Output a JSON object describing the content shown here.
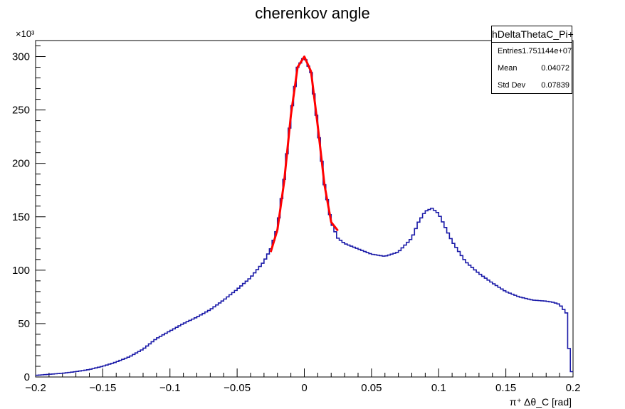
{
  "chart_data": {
    "type": "line",
    "title": "cherenkov angle",
    "xlabel": "π⁺ Δθ_C [rad]",
    "ylabel": "",
    "y_multiplier": "×10³",
    "xlim": [
      -0.2,
      0.2
    ],
    "ylim": [
      0,
      315
    ],
    "x_ticks": [
      -0.2,
      -0.15,
      -0.1,
      -0.05,
      0,
      0.05,
      0.1,
      0.15,
      0.2
    ],
    "x_tick_labels": [
      "−0.2",
      "−0.15",
      "−0.1",
      "−0.05",
      "0",
      "0.05",
      "0.1",
      "0.15",
      "0.2"
    ],
    "y_ticks": [
      0,
      50,
      100,
      150,
      200,
      250,
      300
    ],
    "y_tick_labels": [
      "0",
      "50",
      "100",
      "150",
      "200",
      "250",
      "300"
    ],
    "grid": false,
    "series": [
      {
        "color": "#1a1aa8",
        "style": "histogram-step",
        "x": [
          -0.2,
          -0.19,
          -0.18,
          -0.17,
          -0.16,
          -0.15,
          -0.14,
          -0.13,
          -0.12,
          -0.11,
          -0.1,
          -0.09,
          -0.08,
          -0.07,
          -0.06,
          -0.05,
          -0.04,
          -0.03,
          -0.025,
          -0.02,
          -0.015,
          -0.01,
          -0.005,
          0,
          0.005,
          0.01,
          0.015,
          0.02,
          0.025,
          0.03,
          0.04,
          0.05,
          0.06,
          0.07,
          0.08,
          0.085,
          0.09,
          0.095,
          0.1,
          0.105,
          0.11,
          0.12,
          0.13,
          0.14,
          0.15,
          0.16,
          0.17,
          0.18,
          0.185,
          0.19,
          0.195,
          0.198,
          0.2
        ],
        "values": [
          1.5,
          2.5,
          3.5,
          5,
          7,
          10,
          14,
          19,
          26,
          36,
          43,
          50,
          56,
          63,
          72,
          82,
          93,
          108,
          120,
          140,
          185,
          245,
          290,
          300,
          285,
          235,
          180,
          145,
          130,
          125,
          120,
          115,
          113,
          117,
          130,
          145,
          155,
          158,
          153,
          140,
          127,
          108,
          97,
          88,
          80,
          75,
          72,
          71,
          70,
          68,
          60,
          10,
          0
        ]
      },
      {
        "color": "#ff0000",
        "style": "fit-curve",
        "x": [
          -0.025,
          -0.02,
          -0.015,
          -0.01,
          -0.005,
          0,
          0.005,
          0.01,
          0.015,
          0.02,
          0.025
        ],
        "values": [
          117,
          138,
          183,
          245,
          290,
          300,
          286,
          235,
          180,
          145,
          137
        ]
      }
    ],
    "stats": {
      "name": "hDeltaThetaC_Pi+",
      "rows": [
        {
          "label": "Entries",
          "value": "1.751144e+07"
        },
        {
          "label": "Mean",
          "value": "0.04072"
        },
        {
          "label": "Std Dev",
          "value": "0.07839"
        }
      ]
    }
  }
}
